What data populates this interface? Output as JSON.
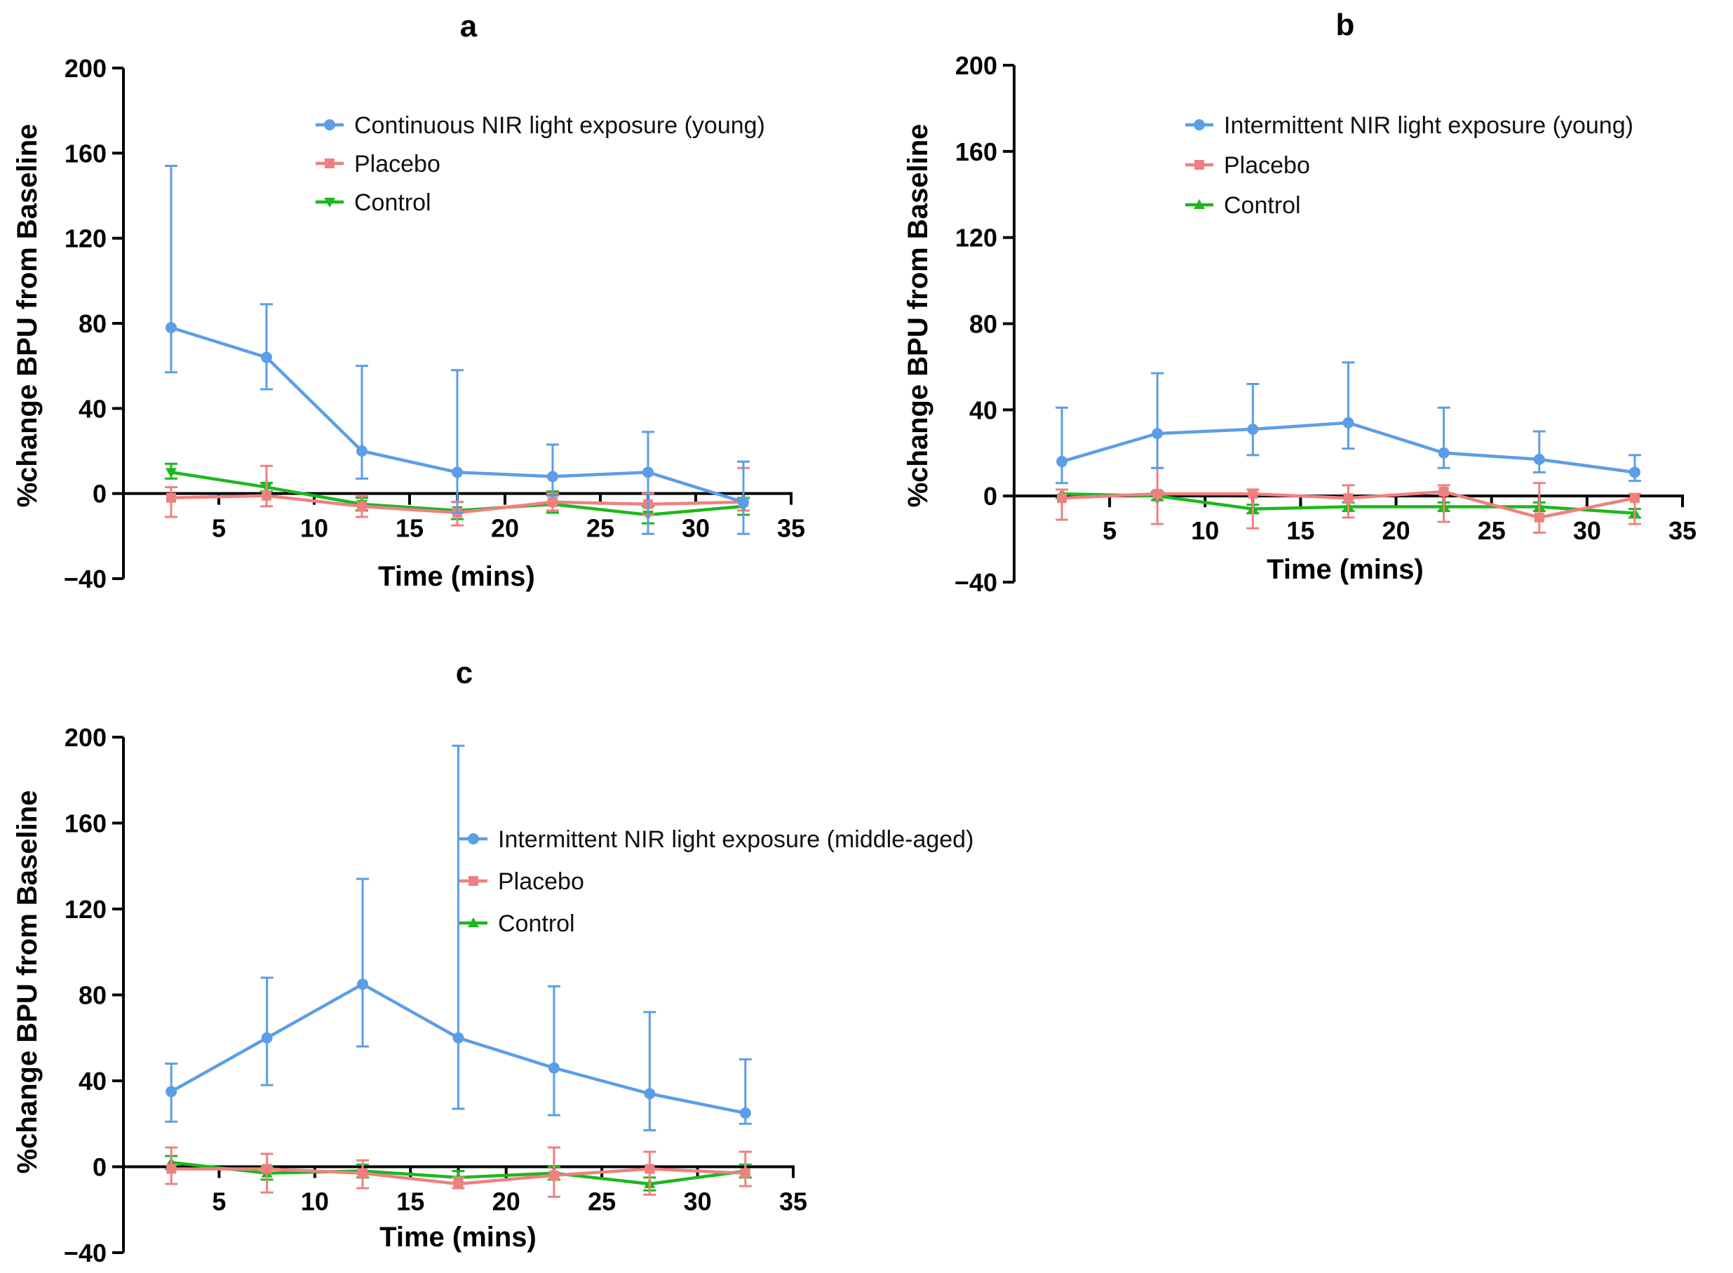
{
  "chart_data": [
    {
      "type": "line",
      "panel": "a",
      "title": "a",
      "xlabel": "Time (mins)",
      "ylabel": "%change BPU from Baseline",
      "xlim": [
        0,
        35
      ],
      "ylim": [
        -40,
        200
      ],
      "xticks": [
        5,
        10,
        15,
        20,
        25,
        30,
        35
      ],
      "yticks": [
        200,
        160,
        120,
        80,
        40,
        0,
        -40
      ],
      "ytick_labels": [
        "200",
        "160",
        "120",
        "80",
        "40",
        "0",
        "−40"
      ],
      "x": [
        2.5,
        7.5,
        12.5,
        17.5,
        22.5,
        27.5,
        32.5
      ],
      "series": [
        {
          "name": "Continuous NIR light exposure (young)",
          "color": "#5b9ee6",
          "marker": "circle",
          "values": [
            78,
            64,
            20,
            10,
            8,
            10,
            -4
          ],
          "err_low": [
            57,
            49,
            7,
            -9,
            -1,
            -19,
            -19
          ],
          "err_high": [
            154,
            89,
            60,
            58,
            23,
            29,
            15
          ]
        },
        {
          "name": "Placebo",
          "color": "#f08080",
          "marker": "square",
          "values": [
            -2,
            -1,
            -6,
            -9,
            -4,
            -5,
            -4
          ],
          "err_low": [
            -11,
            -6,
            -11,
            -15,
            -8,
            -10,
            -8
          ],
          "err_high": [
            3,
            13,
            -1,
            -4,
            0,
            0,
            12
          ]
        },
        {
          "name": "Control",
          "color": "#1cb81c",
          "marker": "triangle-down",
          "values": [
            10,
            3,
            -5,
            -8,
            -5,
            -10,
            -6
          ],
          "err_low": [
            7,
            1,
            -8,
            -12,
            -9,
            -14,
            -10
          ],
          "err_high": [
            14,
            5,
            -2,
            -4,
            1,
            -6,
            -2
          ]
        }
      ]
    },
    {
      "type": "line",
      "panel": "b",
      "title": "b",
      "xlabel": "Time (mins)",
      "ylabel": "%change BPU from Baseline",
      "xlim": [
        0,
        35
      ],
      "ylim": [
        -40,
        200
      ],
      "xticks": [
        5,
        10,
        15,
        20,
        25,
        30,
        35
      ],
      "yticks": [
        200,
        160,
        120,
        80,
        40,
        0,
        -40
      ],
      "ytick_labels": [
        "200",
        "160",
        "120",
        "80",
        "40",
        "0",
        "−40"
      ],
      "x": [
        2.5,
        7.5,
        12.5,
        17.5,
        22.5,
        27.5,
        32.5
      ],
      "series": [
        {
          "name": " Intermittent NIR light exposure (young)",
          "color": "#5b9ee6",
          "marker": "circle",
          "values": [
            16,
            29,
            31,
            34,
            20,
            17,
            11
          ],
          "err_low": [
            6,
            13,
            19,
            22,
            13,
            11,
            7
          ],
          "err_high": [
            41,
            57,
            52,
            62,
            41,
            30,
            19
          ]
        },
        {
          "name": "Placebo",
          "color": "#f08080",
          "marker": "square",
          "values": [
            -1,
            1,
            1,
            -1,
            2,
            -10,
            -1
          ],
          "err_low": [
            -11,
            -13,
            -15,
            -10,
            -12,
            -17,
            -13
          ],
          "err_high": [
            3,
            13,
            3,
            5,
            5,
            6,
            1
          ]
        },
        {
          "name": "Control",
          "color": "#1cb81c",
          "marker": "triangle-up",
          "values": [
            1,
            0,
            -6,
            -5,
            -5,
            -5,
            -8
          ],
          "err_low": [
            -1,
            -2,
            -8,
            -7,
            -7,
            -7,
            -10
          ],
          "err_high": [
            3,
            2,
            -4,
            -3,
            -3,
            -3,
            -6
          ]
        }
      ]
    },
    {
      "type": "line",
      "panel": "c",
      "title": "c",
      "xlabel": "Time (mins)",
      "ylabel": "%change BPU from Baseline",
      "xlim": [
        0,
        35
      ],
      "ylim": [
        -40,
        200
      ],
      "xticks": [
        5,
        10,
        15,
        20,
        25,
        30,
        35
      ],
      "yticks": [
        200,
        160,
        120,
        80,
        40,
        0,
        -40
      ],
      "ytick_labels": [
        "200",
        "160",
        "120",
        "80",
        "40",
        "0",
        "−40"
      ],
      "x": [
        2.5,
        7.5,
        12.5,
        17.5,
        22.5,
        27.5,
        32.5
      ],
      "series": [
        {
          "name": "Intermittent NIR light exposure (middle-aged)",
          "color": "#5b9ee6",
          "marker": "circle",
          "values": [
            35,
            60,
            85,
            60,
            46,
            34,
            25
          ],
          "err_low": [
            21,
            38,
            56,
            27,
            24,
            17,
            20
          ],
          "err_high": [
            48,
            88,
            134,
            196,
            84,
            72,
            50
          ]
        },
        {
          "name": "Placebo",
          "color": "#f08080",
          "marker": "square",
          "values": [
            -1,
            -1,
            -3,
            -8,
            -4,
            -1,
            -3
          ],
          "err_low": [
            -8,
            -12,
            -10,
            -10,
            -14,
            -13,
            -9
          ],
          "err_high": [
            9,
            6,
            3,
            -5,
            9,
            7,
            7
          ]
        },
        {
          "name": "Control",
          "color": "#1cb81c",
          "marker": "triangle-up",
          "values": [
            2,
            -3,
            -2,
            -5,
            -3,
            -8,
            -2
          ],
          "err_low": [
            -1,
            -6,
            -5,
            -8,
            -6,
            -11,
            -5
          ],
          "err_high": [
            5,
            0,
            1,
            -2,
            0,
            -5,
            1
          ]
        }
      ]
    }
  ]
}
